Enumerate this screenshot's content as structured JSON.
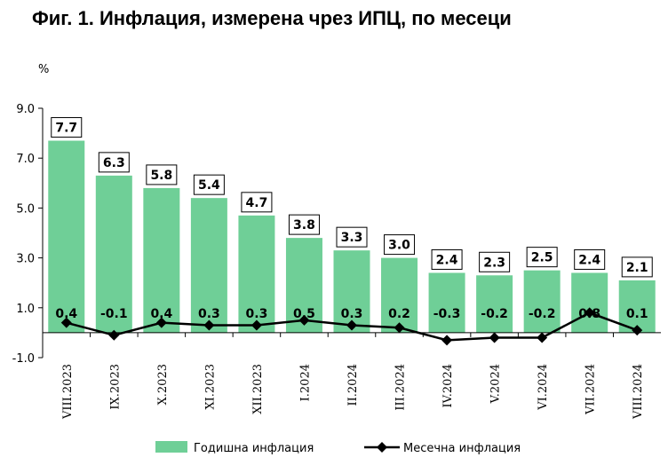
{
  "title": "Фиг. 1. Инфлация, измерена чрез ИПЦ, по месеци",
  "chart_data": {
    "type": "bar",
    "title": "Фиг. 1. Инфлация, измерена чрез ИПЦ, по месеци",
    "ylabel": "%",
    "ylim": [
      -1.0,
      9.0
    ],
    "yticks": [
      "9.0",
      "7.0",
      "5.0",
      "3.0",
      "1.0",
      "-1.0"
    ],
    "categories": [
      "VIII.2023",
      "IX.2023",
      "X.2023",
      "XI.2023",
      "XII.2023",
      "I.2024",
      "II.2024",
      "III.2024",
      "IV.2024",
      "V.2024",
      "VI.2024",
      "VII.2024",
      "VIII.2024"
    ],
    "series": [
      {
        "name": "Годишна инфлация",
        "type": "bar",
        "color": "#6fcf97",
        "values": [
          7.7,
          6.3,
          5.8,
          5.4,
          4.7,
          3.8,
          3.3,
          3.0,
          2.4,
          2.3,
          2.5,
          2.4,
          2.1
        ]
      },
      {
        "name": "Месечна инфлация",
        "type": "line",
        "color": "#000000",
        "values": [
          0.4,
          -0.1,
          0.4,
          0.3,
          0.3,
          0.5,
          0.3,
          0.2,
          -0.3,
          -0.2,
          -0.2,
          0.8,
          0.1
        ]
      }
    ],
    "grid": false,
    "legend": "bottom"
  }
}
